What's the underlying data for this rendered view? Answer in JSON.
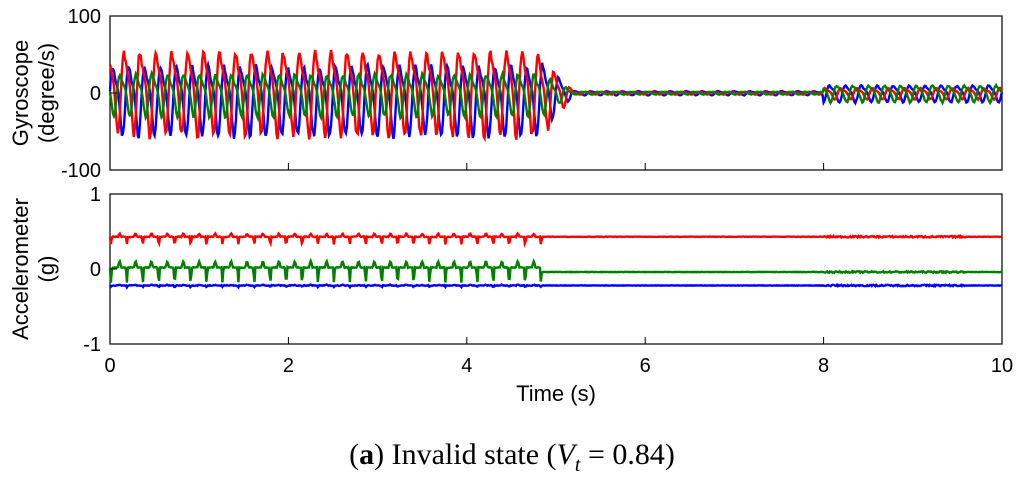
{
  "chart_data": [
    {
      "type": "line",
      "panel": "top",
      "ylabel": [
        "Gyroscope",
        "(degree/s)"
      ],
      "ylim": [
        -100,
        100
      ],
      "yticks": [
        -100,
        0,
        100
      ],
      "xlim": [
        0,
        10
      ],
      "series": [
        {
          "name": "blue",
          "color": "#0000ff",
          "amplitude_active": 50,
          "amplitude_quiet": 3,
          "amplitude_late": 12,
          "offset": -5,
          "freq_hz": 5.6,
          "phase": 0.0
        },
        {
          "name": "red",
          "color": "#ff0000",
          "amplitude_active": 60,
          "amplitude_quiet": 2,
          "amplitude_late": 8,
          "offset": 5,
          "freq_hz": 5.6,
          "phase": 1.8
        },
        {
          "name": "green",
          "color": "#008000",
          "amplitude_active": 30,
          "amplitude_quiet": 2,
          "amplitude_late": 12,
          "offset": 0,
          "freq_hz": 5.6,
          "phase": 3.4
        }
      ]
    },
    {
      "type": "line",
      "panel": "bottom",
      "ylabel": [
        "Accelerometer",
        "(g)"
      ],
      "ylim": [
        -1,
        1
      ],
      "yticks": [
        -1,
        0,
        1
      ],
      "xlim": [
        0,
        10
      ],
      "xticks": [
        0,
        2,
        4,
        6,
        8,
        10
      ],
      "xlabel": "Time (s)",
      "series": [
        {
          "name": "red",
          "color": "#ff0000",
          "baseline": 0.43,
          "spike": 0.1,
          "offset_after": 0.43
        },
        {
          "name": "green",
          "color": "#008000",
          "baseline": 0.02,
          "spike": 0.2,
          "offset_after": -0.04
        },
        {
          "name": "blue",
          "color": "#0000ff",
          "baseline": -0.22,
          "spike": 0.02,
          "offset_after": -0.22
        }
      ]
    }
  ],
  "caption": {
    "label": "a",
    "text": " Invalid state (",
    "var": "V",
    "sub": "t",
    "value": " = 0.84)"
  }
}
